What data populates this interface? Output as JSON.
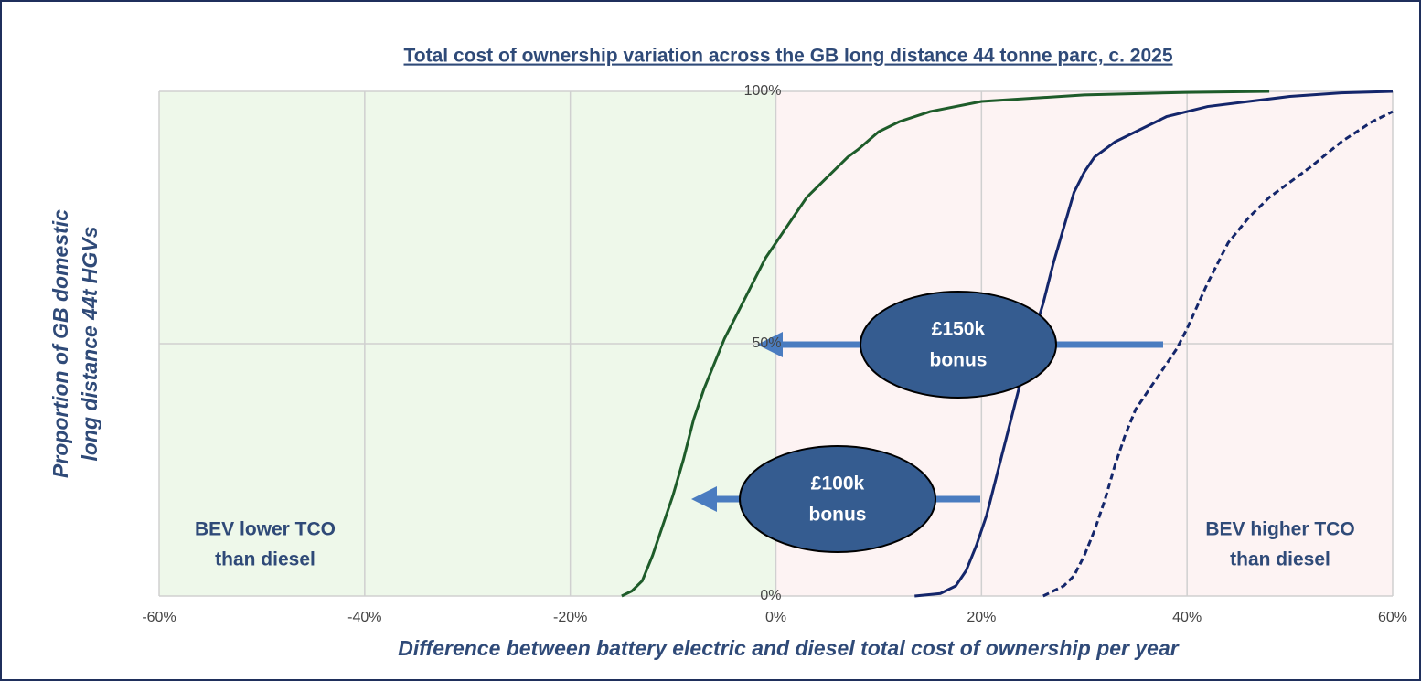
{
  "chart_data": {
    "type": "line",
    "title": "Total cost of ownership variation across the GB long distance 44 tonne parc, c. 2025",
    "xlabel": "Difference between battery electric and diesel total cost of ownership per year",
    "ylabel": [
      "Proportion of GB domestic",
      "long distance 44t HGVs"
    ],
    "annotations": {
      "bonus150": [
        "£150k",
        "bonus"
      ],
      "bonus100": [
        "£100k",
        "bonus"
      ],
      "lower": [
        "BEV lower TCO",
        "than diesel"
      ],
      "higher": [
        "BEV higher TCO",
        "than diesel"
      ]
    },
    "series": [
      {
        "color": "#1e5c2a",
        "dashed": false,
        "x": [
          -15,
          -14,
          -13,
          -12,
          -11,
          -10,
          -9,
          -8,
          -7,
          -6,
          -5,
          -4,
          -3,
          -2,
          -1,
          0,
          1,
          2,
          3,
          4,
          5,
          6,
          7,
          8,
          10,
          12,
          15,
          20,
          30,
          40,
          48
        ],
        "values": [
          0,
          1,
          3,
          8,
          14,
          20,
          27,
          35,
          41,
          46,
          51,
          55,
          59,
          63,
          67,
          70,
          73,
          76,
          79,
          81,
          83,
          85,
          87,
          88.5,
          92,
          94,
          96,
          98,
          99.3,
          99.8,
          100
        ]
      },
      {
        "color": "#14266b",
        "dashed": false,
        "x": [
          13.5,
          16,
          17.5,
          18.5,
          19.5,
          20.5,
          21.5,
          22.5,
          23.5,
          24.5,
          26,
          27,
          28,
          29,
          30,
          31,
          33,
          36,
          38,
          42,
          46,
          50,
          55,
          60
        ],
        "values": [
          0,
          0.5,
          2,
          5,
          10,
          16,
          24,
          32,
          40,
          48,
          58,
          66,
          73,
          80,
          84,
          87,
          90,
          93,
          95,
          97,
          98,
          99,
          99.7,
          100
        ]
      },
      {
        "color": "#14266b",
        "dashed": true,
        "x": [
          26,
          28,
          29,
          30,
          31,
          32,
          33,
          34,
          35,
          36,
          37,
          38,
          39,
          40,
          42,
          44,
          46,
          48,
          50,
          52,
          55,
          58,
          60
        ],
        "values": [
          0,
          2,
          4,
          8,
          13,
          19,
          26,
          32,
          37,
          40,
          43,
          46,
          49,
          53,
          62,
          70,
          75,
          79,
          82,
          85,
          90,
          94,
          96
        ]
      }
    ],
    "xlim": [
      -60,
      60
    ],
    "xticks": [
      {
        "value": -60,
        "label": "-60%"
      },
      {
        "value": -40,
        "label": "-40%"
      },
      {
        "value": -20,
        "label": "-20%"
      },
      {
        "value": 0,
        "label": "0%"
      },
      {
        "value": 20,
        "label": "20%"
      },
      {
        "value": 40,
        "label": "40%"
      },
      {
        "value": 60,
        "label": "60%"
      }
    ],
    "ylim": [
      0,
      100
    ],
    "yticks": [
      {
        "value": 0,
        "label": "0%"
      },
      {
        "value": 50,
        "label": "50%"
      },
      {
        "value": 100,
        "label": "100%"
      }
    ],
    "grid": true,
    "regions": [
      {
        "from": -60,
        "to": 0,
        "color": "#eef8ea"
      },
      {
        "from": 0,
        "to": 60,
        "color": "#fdf3f3"
      }
    ]
  }
}
